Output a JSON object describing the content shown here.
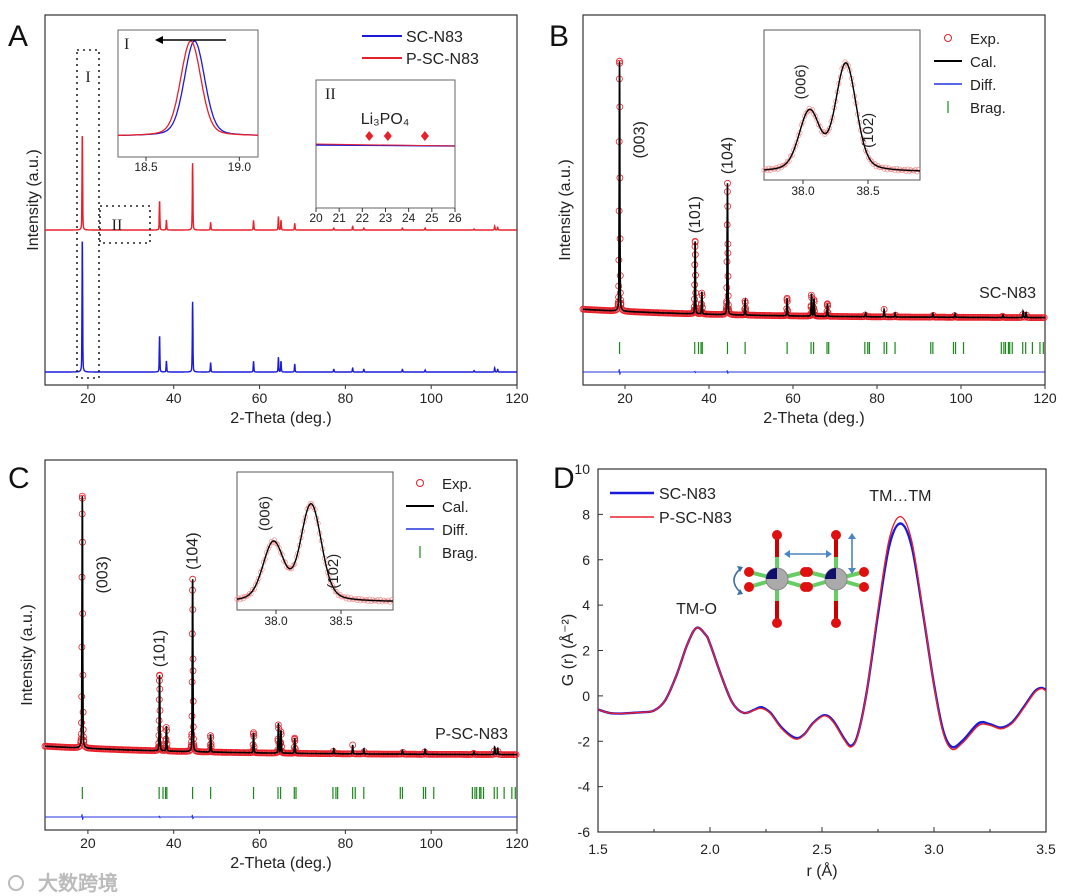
{
  "figure": {
    "panel_labels": [
      "A",
      "B",
      "C",
      "D"
    ],
    "watermark": "大数跨境"
  },
  "colors": {
    "blue": "#1a1adb",
    "red": "#e8202a",
    "black": "#000000",
    "green": "#1a8a1a",
    "diff_blue": "#2233dd",
    "arrow": "#4a86c4"
  },
  "chart_data": [
    {
      "panel": "A",
      "type": "line",
      "xlabel": "2-Theta (deg.)",
      "ylabel": "Intensity (a.u.)",
      "xlim": [
        10,
        120
      ],
      "xticks": [
        20,
        40,
        60,
        80,
        100,
        120
      ],
      "legend": {
        "placement": "top-right",
        "entries": [
          {
            "name": "SC-N83",
            "color": "#1a1adb"
          },
          {
            "name": "P-SC-N83",
            "color": "#e8202a"
          }
        ]
      },
      "series": [
        {
          "name": "P-SC-N83",
          "color": "#e8202a",
          "stack": "upper",
          "peaks": [
            [
              18.7,
              1
            ],
            [
              36.7,
              0.3
            ],
            [
              38.3,
              0.1
            ],
            [
              44.4,
              0.69
            ],
            [
              48.6,
              0.08
            ],
            [
              58.6,
              0.1
            ],
            [
              64.4,
              0.14
            ],
            [
              65.0,
              0.1
            ],
            [
              68.2,
              0.07
            ],
            [
              77.3,
              0.02
            ],
            [
              81.7,
              0.04
            ],
            [
              84.3,
              0.02
            ],
            [
              93.3,
              0.02
            ],
            [
              98.6,
              0.02
            ],
            [
              110.0,
              0.01
            ],
            [
              114.8,
              0.04
            ],
            [
              115.5,
              0.03
            ]
          ]
        },
        {
          "name": "SC-N83",
          "color": "#1a1adb",
          "stack": "lower",
          "peaks": [
            [
              18.7,
              1
            ],
            [
              36.7,
              0.27
            ],
            [
              38.3,
              0.08
            ],
            [
              44.4,
              0.52
            ],
            [
              48.6,
              0.07
            ],
            [
              58.6,
              0.08
            ],
            [
              64.4,
              0.11
            ],
            [
              65.0,
              0.08
            ],
            [
              68.2,
              0.06
            ],
            [
              77.3,
              0.02
            ],
            [
              81.7,
              0.03
            ],
            [
              84.3,
              0.02
            ],
            [
              93.3,
              0.02
            ],
            [
              98.6,
              0.015
            ],
            [
              110.0,
              0.01
            ],
            [
              114.8,
              0.03
            ],
            [
              115.5,
              0.02
            ]
          ]
        }
      ],
      "regions": [
        {
          "label": "I",
          "xrange": [
            16.5,
            21
          ]
        },
        {
          "label": "II",
          "xrange": [
            21,
            33
          ]
        }
      ],
      "insets": [
        {
          "label": "I",
          "xlim": [
            18.35,
            19.1
          ],
          "xticks": [
            "18.5",
            "19.0"
          ],
          "arrow": "shift-left",
          "series": [
            {
              "name": "SC-N83",
              "color": "#1a1adb",
              "center": 18.76
            },
            {
              "name": "P-SC-N83",
              "color": "#e8202a",
              "center": 18.74
            }
          ]
        },
        {
          "label": "II",
          "xlim": [
            20,
            26
          ],
          "xticks": [
            "20",
            "21",
            "22",
            "23",
            "24",
            "25",
            "26"
          ],
          "annotation": "Li₃PO₄",
          "markers": [
            22.3,
            23.1,
            24.7
          ]
        }
      ]
    },
    {
      "panel": "B",
      "type": "line",
      "sample_label": "SC-N83",
      "xlabel": "2-Theta (deg.)",
      "ylabel": "Intensity (a.u.)",
      "xlim": [
        10,
        120
      ],
      "xticks": [
        20,
        40,
        60,
        80,
        100,
        120
      ],
      "legend": {
        "placement": "top-right",
        "entries": [
          "Exp.",
          "Cal.",
          "Diff.",
          "Brag."
        ]
      },
      "peak_labels": [
        {
          "text": "(003)",
          "x": 18.7
        },
        {
          "text": "(101)",
          "x": 36.7
        },
        {
          "text": "(104)",
          "x": 44.4
        }
      ],
      "peaks": [
        [
          18.7,
          1
        ],
        [
          36.7,
          0.29
        ],
        [
          38.3,
          0.09
        ],
        [
          44.4,
          0.53
        ],
        [
          48.6,
          0.06
        ],
        [
          58.6,
          0.07
        ],
        [
          64.4,
          0.09
        ],
        [
          65.0,
          0.07
        ],
        [
          68.2,
          0.05
        ],
        [
          77.3,
          0.015
        ],
        [
          81.7,
          0.03
        ],
        [
          84.3,
          0.015
        ],
        [
          93.3,
          0.015
        ],
        [
          98.6,
          0.015
        ],
        [
          110.0,
          0.01
        ],
        [
          114.8,
          0.025
        ],
        [
          115.5,
          0.02
        ]
      ],
      "bragg_positions": [
        18.7,
        36.6,
        37.5,
        38.1,
        38.4,
        44.4,
        48.6,
        58.6,
        64.3,
        64.9,
        68.1,
        68.5,
        77.1,
        77.8,
        78.2,
        81.7,
        82.3,
        84.3,
        92.8,
        93.3,
        98.2,
        98.7,
        100.6,
        109.6,
        110.2,
        110.6,
        111.3,
        111.6,
        112.2,
        114.7,
        115.4,
        117.0,
        118.8,
        119.6
      ],
      "inset": {
        "xlim": [
          37.7,
          38.9
        ],
        "xticks": [
          "38.0",
          "38.5"
        ],
        "peaks": [
          [
            38.05,
            0.55
          ],
          [
            38.33,
            1.0
          ]
        ],
        "peak_labels": [
          {
            "text": "(006)",
            "x": 38.05
          },
          {
            "text": "(102)",
            "x": 38.33
          }
        ]
      }
    },
    {
      "panel": "C",
      "type": "line",
      "sample_label": "P-SC-N83",
      "xlabel": "2-Theta (deg.)",
      "ylabel": "Intensity (a.u.)",
      "xlim": [
        10,
        120
      ],
      "xticks": [
        20,
        40,
        60,
        80,
        100,
        120
      ],
      "legend": {
        "placement": "top-right",
        "entries": [
          "Exp.",
          "Cal.",
          "Diff.",
          "Brag."
        ]
      },
      "peak_labels": [
        {
          "text": "(003)",
          "x": 18.7
        },
        {
          "text": "(101)",
          "x": 36.7
        },
        {
          "text": "(104)",
          "x": 44.4
        }
      ],
      "peaks": [
        [
          18.7,
          1
        ],
        [
          36.7,
          0.3
        ],
        [
          38.3,
          0.1
        ],
        [
          44.4,
          0.69
        ],
        [
          48.6,
          0.07
        ],
        [
          58.6,
          0.08
        ],
        [
          64.4,
          0.12
        ],
        [
          65.0,
          0.09
        ],
        [
          68.2,
          0.06
        ],
        [
          77.3,
          0.02
        ],
        [
          81.7,
          0.035
        ],
        [
          84.3,
          0.02
        ],
        [
          93.3,
          0.015
        ],
        [
          98.6,
          0.02
        ],
        [
          110.0,
          0.01
        ],
        [
          114.8,
          0.03
        ],
        [
          115.5,
          0.025
        ]
      ],
      "bragg_positions": [
        18.7,
        36.6,
        37.5,
        38.1,
        38.4,
        44.4,
        48.6,
        58.6,
        64.3,
        64.9,
        68.1,
        68.5,
        77.1,
        77.8,
        78.2,
        81.7,
        82.3,
        84.3,
        92.8,
        93.3,
        98.2,
        98.7,
        100.6,
        109.6,
        110.2,
        110.6,
        111.3,
        111.6,
        112.2,
        114.7,
        115.4,
        117.0,
        118.8,
        119.6
      ],
      "inset": {
        "xlim": [
          37.7,
          38.9
        ],
        "xticks": [
          "38.0",
          "38.5"
        ],
        "peaks": [
          [
            37.98,
            0.6
          ],
          [
            38.27,
            1.0
          ]
        ],
        "peak_labels": [
          {
            "text": "(006)",
            "x": 37.98
          },
          {
            "text": "(102)",
            "x": 38.27
          }
        ]
      }
    },
    {
      "panel": "D",
      "type": "line",
      "xlabel": "r (Å)",
      "ylabel": "G (r) (Å⁻²)",
      "xlim": [
        1.5,
        3.5
      ],
      "ylim": [
        -6,
        10
      ],
      "xticks": [
        "1.5",
        "2.0",
        "2.5",
        "3.0",
        "3.5"
      ],
      "yticks": [
        "-6",
        "-4",
        "-2",
        "0",
        "2",
        "4",
        "6",
        "8",
        "10"
      ],
      "legend": {
        "placement": "top-left",
        "entries": [
          {
            "name": "SC-N83",
            "color": "#1a1adb"
          },
          {
            "name": "P-SC-N83",
            "color": "#e8202a"
          }
        ]
      },
      "annotations": [
        {
          "text": "TM-O",
          "x": 1.94,
          "y": 3.6
        },
        {
          "text": "TM…TM",
          "x": 2.85,
          "y": 8.6
        }
      ],
      "x": [
        1.5,
        1.55,
        1.6,
        1.65,
        1.7,
        1.75,
        1.8,
        1.85,
        1.9,
        1.94,
        1.98,
        2.0,
        2.05,
        2.1,
        2.15,
        2.2,
        2.23,
        2.27,
        2.32,
        2.38,
        2.42,
        2.46,
        2.51,
        2.55,
        2.6,
        2.63,
        2.66,
        2.7,
        2.75,
        2.8,
        2.85,
        2.9,
        2.95,
        3.0,
        3.04,
        3.08,
        3.13,
        3.2,
        3.25,
        3.3,
        3.35,
        3.4,
        3.45,
        3.48,
        3.5
      ],
      "series": [
        {
          "name": "SC-N83",
          "color": "#1a1adb",
          "y": [
            -0.6,
            -0.75,
            -0.78,
            -0.75,
            -0.72,
            -0.65,
            -0.2,
            0.9,
            2.3,
            3.0,
            2.7,
            2.3,
            0.9,
            -0.3,
            -0.75,
            -0.6,
            -0.5,
            -0.75,
            -1.4,
            -1.85,
            -1.7,
            -1.2,
            -0.85,
            -1.1,
            -1.9,
            -2.2,
            -1.7,
            0.2,
            3.6,
            6.6,
            7.6,
            6.6,
            3.7,
            0.5,
            -1.5,
            -2.25,
            -1.95,
            -1.2,
            -1.25,
            -1.4,
            -1.15,
            -0.5,
            0.2,
            0.35,
            0.25
          ]
        },
        {
          "name": "P-SC-N83",
          "color": "#e8202a",
          "y": [
            -0.6,
            -0.75,
            -0.78,
            -0.75,
            -0.72,
            -0.65,
            -0.2,
            0.9,
            2.3,
            3.0,
            2.7,
            2.3,
            0.9,
            -0.3,
            -0.75,
            -0.62,
            -0.55,
            -0.78,
            -1.45,
            -1.9,
            -1.72,
            -1.22,
            -0.88,
            -1.15,
            -1.95,
            -2.25,
            -1.75,
            0.2,
            3.8,
            6.9,
            7.9,
            6.85,
            3.8,
            0.45,
            -1.6,
            -2.35,
            -2.05,
            -1.3,
            -1.3,
            -1.45,
            -1.2,
            -0.55,
            0.15,
            0.32,
            0.22
          ]
        }
      ]
    }
  ]
}
